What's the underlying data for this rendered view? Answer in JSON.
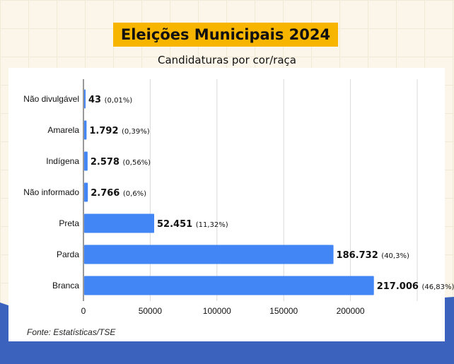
{
  "header": {
    "title": "Eleições Municipais 2024",
    "subtitle": "Candidaturas por cor/raça"
  },
  "footer": {
    "source": "Fonte: Estatísticas/TSE"
  },
  "colors": {
    "bar": "#4285f4",
    "title_bg": "#f7b500",
    "wave": "#3b63be",
    "background": "#fbf6e9"
  },
  "chart_data": {
    "type": "bar",
    "orientation": "horizontal",
    "title": "Candidaturas por cor/raça",
    "categories": [
      "Não divulgável",
      "Amarela",
      "Indígena",
      "Não informado",
      "Preta",
      "Parda",
      "Branca"
    ],
    "values": [
      43,
      1792,
      2578,
      2766,
      52451,
      186732,
      217006
    ],
    "value_labels": [
      "43",
      "1.792",
      "2.578",
      "2.766",
      "52.451",
      "186.732",
      "217.006"
    ],
    "percent_labels": [
      "(0,01%)",
      "(0,39%)",
      "(0,56%)",
      "(0,6%)",
      "(11,32%)",
      "(40,3%)",
      "(46,83%)"
    ],
    "xlim": [
      0,
      250000
    ],
    "xticks": [
      0,
      50000,
      100000,
      150000,
      200000
    ],
    "xtick_labels": [
      "0",
      "50000",
      "100000",
      "150000",
      "200000"
    ],
    "grid": true,
    "legend": "none"
  }
}
